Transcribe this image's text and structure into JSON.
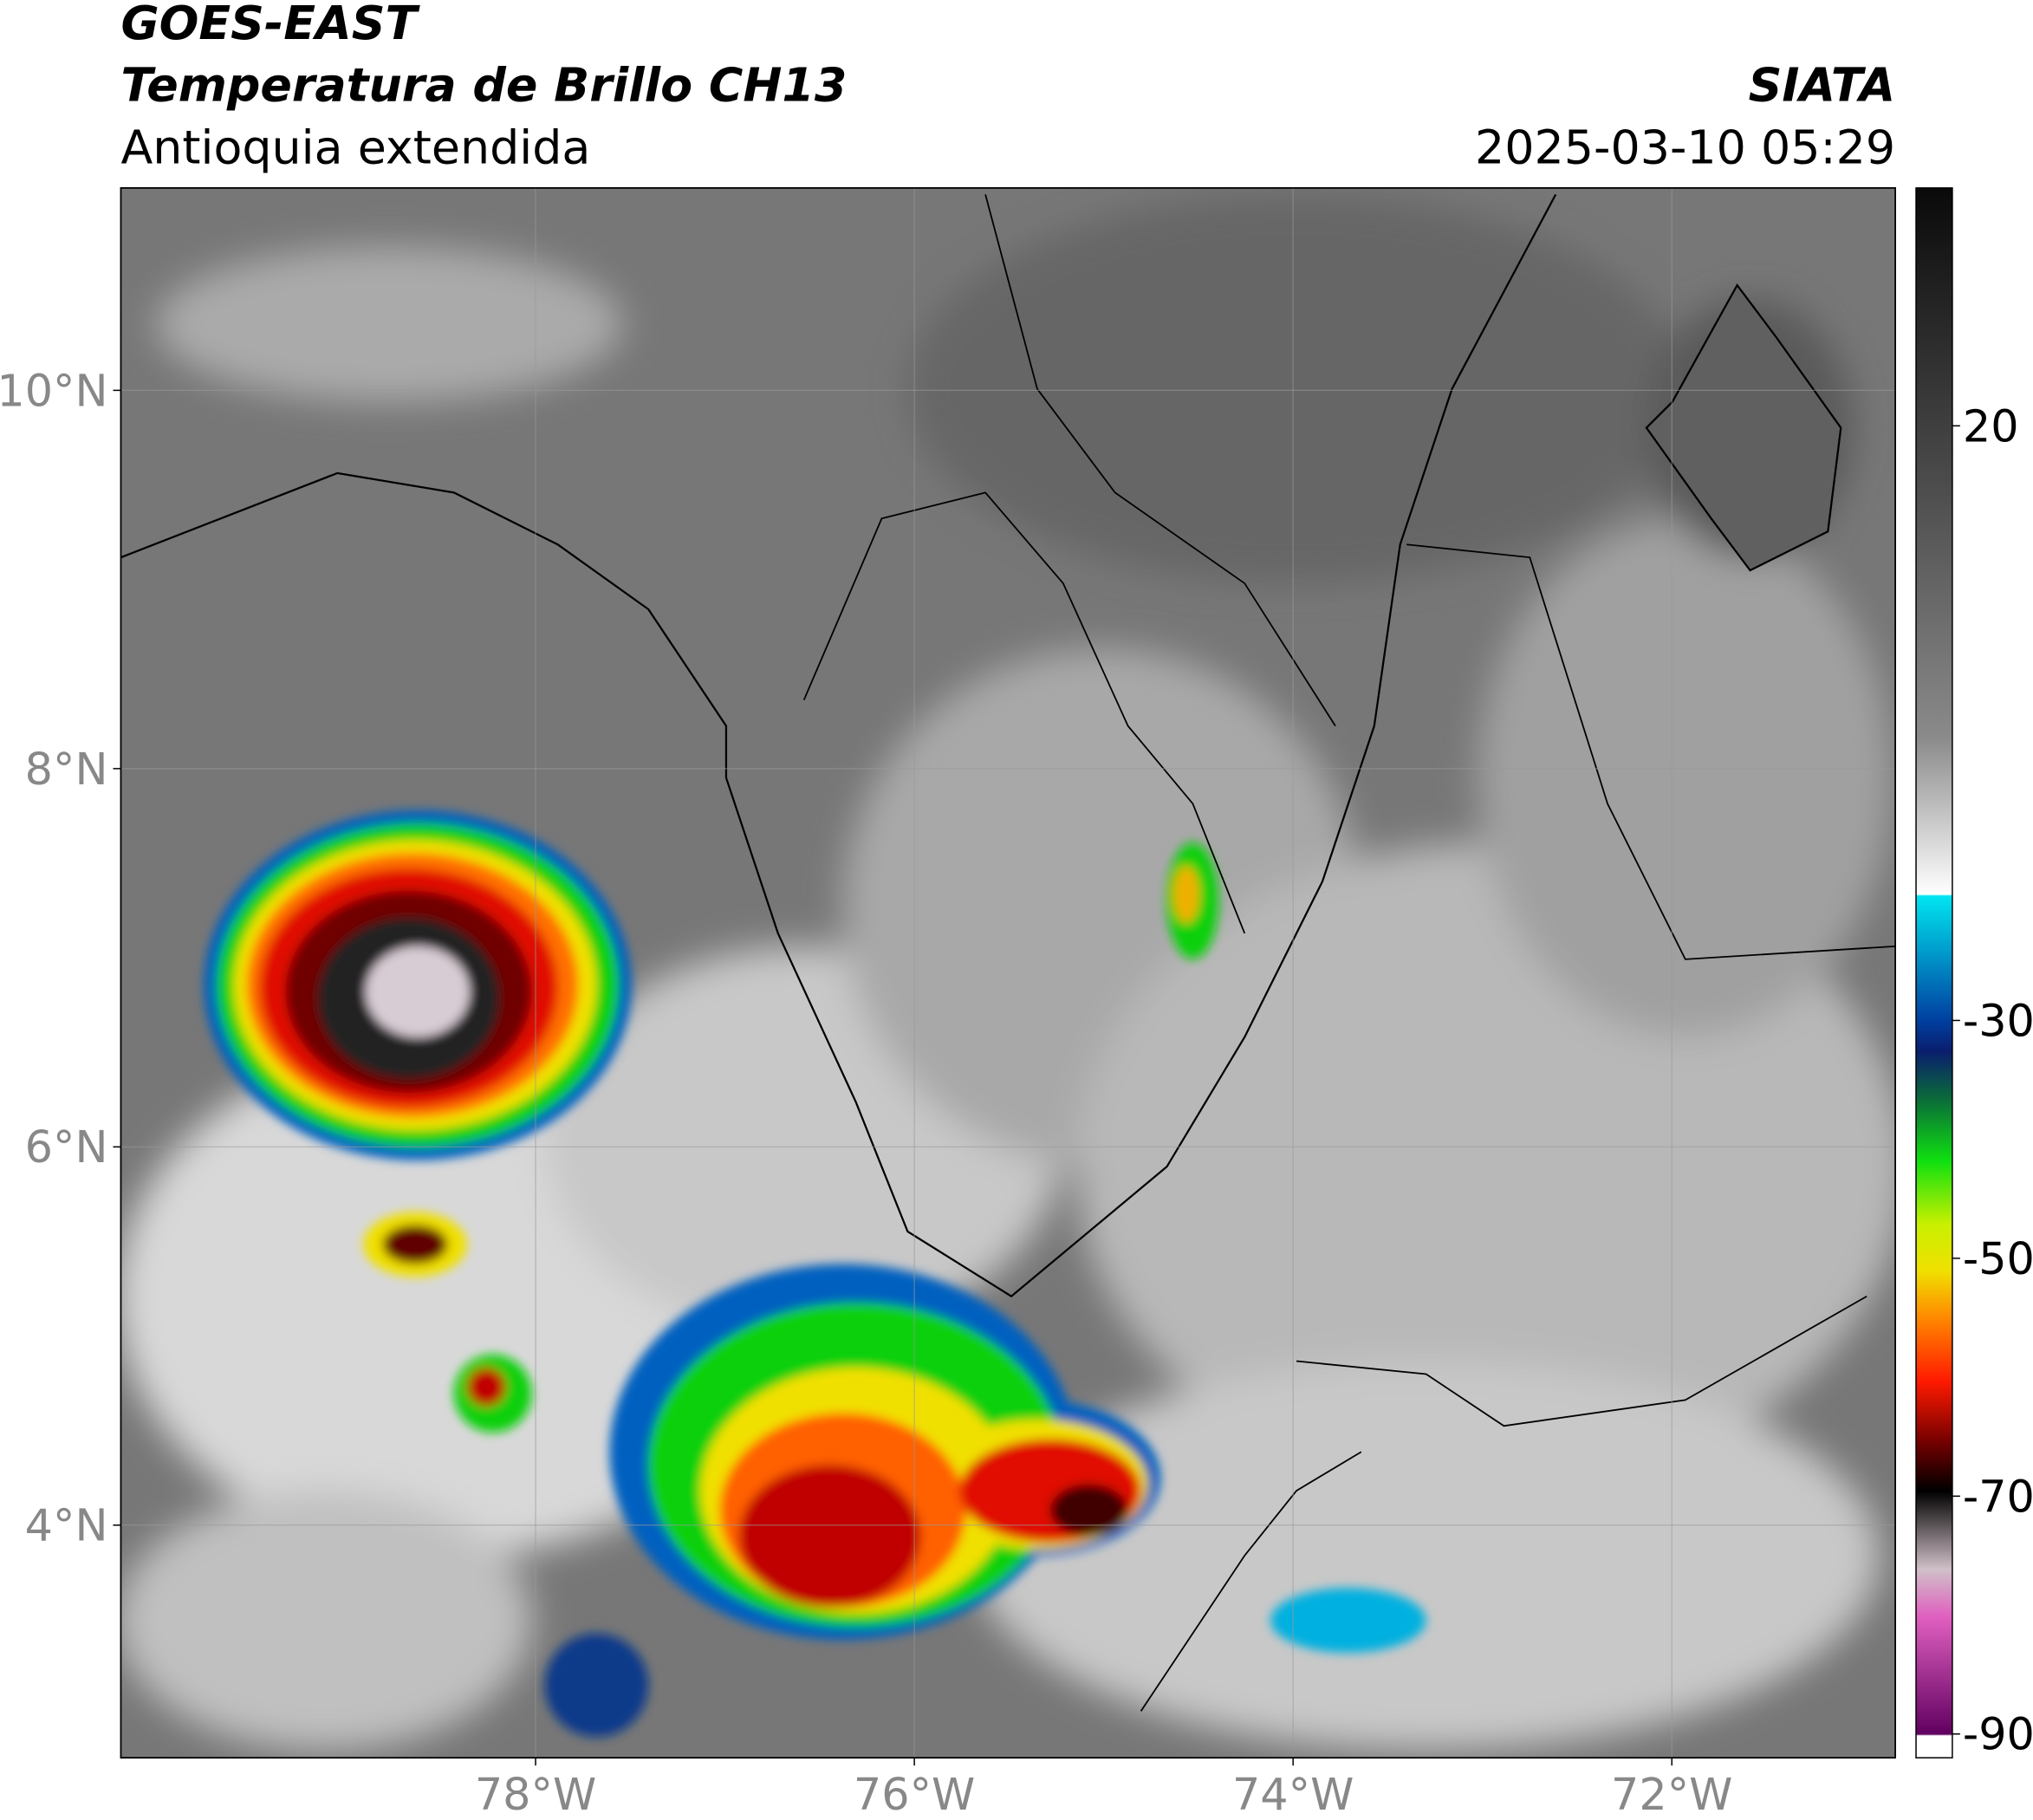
{
  "header": {
    "title": "GOES-EAST",
    "subtitle": "Temperatura de Brillo CH13",
    "region": "Antioquia extendida",
    "source": "SIATA",
    "timestamp": "2025-03-10 05:29"
  },
  "map": {
    "xlim": [
      -80.19,
      -70.82
    ],
    "ylim": [
      2.77,
      11.07
    ],
    "xticks": [
      {
        "value": -78,
        "label": "78°W"
      },
      {
        "value": -76,
        "label": "76°W"
      },
      {
        "value": -74,
        "label": "74°W"
      },
      {
        "value": -72,
        "label": "72°W"
      }
    ],
    "yticks": [
      {
        "value": 4,
        "label": "4°N"
      },
      {
        "value": 6,
        "label": "6°N"
      },
      {
        "value": 8,
        "label": "8°N"
      },
      {
        "value": 10,
        "label": "10°N"
      }
    ],
    "grid": true
  },
  "colorbar": {
    "lim": [
      -92,
      40
    ],
    "ticks": [
      20,
      -30,
      -50,
      -70,
      -90
    ]
  }
}
